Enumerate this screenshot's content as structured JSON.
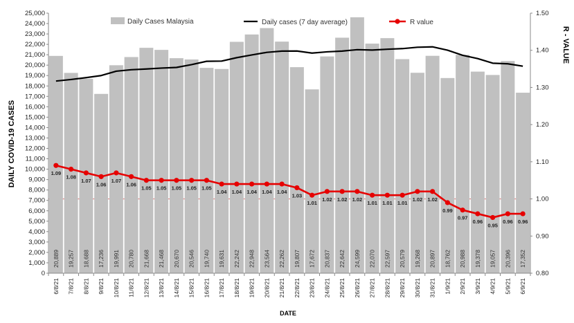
{
  "chart_data": {
    "type": "bar",
    "title": "",
    "xlabel": "DATE",
    "ylabel": "DAILY COVID-19 CASES",
    "y2label": "R - VALUE",
    "categories": [
      "6/8/21",
      "7/8/21",
      "8/8/21",
      "9/8/21",
      "10/8/21",
      "11/8/21",
      "12/8/21",
      "13/8/21",
      "14/8/21",
      "15/8/21",
      "16/8/21",
      "17/8/21",
      "18/8/21",
      "19/8/21",
      "20/8/21",
      "21/8/21",
      "22/8/21",
      "23/8/21",
      "24/8/21",
      "25/8/21",
      "26/8/21",
      "27/8/21",
      "28/8/21",
      "29/8/21",
      "30/8/21",
      "31/8/21",
      "1/9/21",
      "2/9/21",
      "3/9/21",
      "4/9/21",
      "5/9/21",
      "6/9/21"
    ],
    "ylim": [
      0,
      25000
    ],
    "ytick_step": 1000,
    "y2lim": [
      0.8,
      1.5
    ],
    "y2_ticks": [
      "0.80",
      "0.90",
      "1.00",
      "1.10",
      "1.20",
      "1.30",
      "1.40",
      "1.50"
    ],
    "grid": false,
    "legend_position": "top",
    "reference_line": {
      "axis": "y2",
      "value": 1.0,
      "color": "#e06666"
    },
    "series": [
      {
        "name": "Daily Cases Malaysia",
        "kind": "bar",
        "axis": "y",
        "color": "#c0c0c0",
        "values": [
          20889,
          19257,
          18688,
          17236,
          19991,
          20780,
          21668,
          21468,
          20670,
          20546,
          19740,
          19631,
          22242,
          22948,
          23564,
          22262,
          19807,
          17672,
          20837,
          22642,
          24599,
          22070,
          22597,
          20579,
          19268,
          20897,
          18762,
          20988,
          19378,
          19057,
          20396,
          17352
        ],
        "labels": [
          "20,889",
          "19,257",
          "18,688",
          "17,236",
          "19,991",
          "20,780",
          "21,668",
          "21,468",
          "20,670",
          "20,546",
          "19,740",
          "19,631",
          "22,242",
          "22,948",
          "23,564",
          "22,262",
          "19,807",
          "17,672",
          "20,837",
          "22,642",
          "24,599",
          "22,070",
          "22,597",
          "20,579",
          "19,268",
          "20,897",
          "18,762",
          "20,988",
          "19,378",
          "19,057",
          "20,396",
          "17,352"
        ]
      },
      {
        "name": "Daily cases (7 day average)",
        "kind": "line",
        "axis": "y",
        "color": "#000000",
        "values": [
          18470,
          18620,
          18800,
          19000,
          19420,
          19560,
          19630,
          19720,
          19780,
          20050,
          20370,
          20390,
          20720,
          20980,
          21230,
          21350,
          21360,
          21160,
          21280,
          21350,
          21490,
          21450,
          21530,
          21590,
          21720,
          21760,
          21440,
          20950,
          20630,
          20190,
          20130,
          19900
        ]
      },
      {
        "name": "R value",
        "kind": "line-markers",
        "axis": "y2",
        "color": "#e60000",
        "values": [
          1.09,
          1.08,
          1.07,
          1.06,
          1.07,
          1.06,
          1.05,
          1.05,
          1.05,
          1.05,
          1.05,
          1.04,
          1.04,
          1.04,
          1.04,
          1.04,
          1.03,
          1.01,
          1.02,
          1.02,
          1.02,
          1.01,
          1.01,
          1.01,
          1.02,
          1.02,
          0.99,
          0.97,
          0.96,
          0.95,
          0.96,
          0.96
        ],
        "labels": [
          "1.09",
          "1.08",
          "1.07",
          "1.06",
          "1.07",
          "1.06",
          "1.05",
          "1.05",
          "1.05",
          "1.05",
          "1.05",
          "1.04",
          "1.04",
          "1.04",
          "1.04",
          "1.04",
          "1.03",
          "1.01",
          "1.02",
          "1.02",
          "1.02",
          "1.01",
          "1.01",
          "1.01",
          "1.02",
          "1.02",
          "0.99",
          "0.97",
          "0.96",
          "0.95",
          "0.96",
          "0.96"
        ]
      }
    ]
  }
}
